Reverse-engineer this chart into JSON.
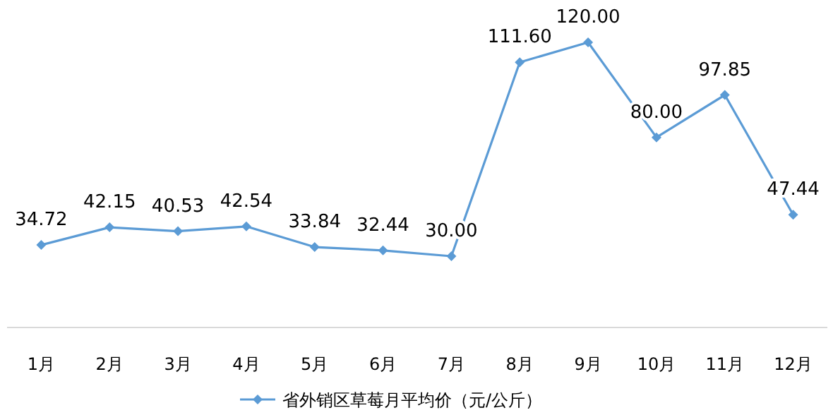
{
  "chart_data": {
    "type": "line",
    "categories": [
      "1月",
      "2月",
      "3月",
      "4月",
      "5月",
      "6月",
      "7月",
      "8月",
      "9月",
      "10月",
      "11月",
      "12月"
    ],
    "series": [
      {
        "name": "省外销区草莓月平均价（元/公斤）",
        "color": "#5b9bd5",
        "values": [
          34.72,
          42.15,
          40.53,
          42.54,
          33.84,
          32.44,
          30.0,
          111.6,
          120.0,
          80.0,
          97.85,
          47.44
        ],
        "value_labels": [
          "34.72",
          "42.15",
          "40.53",
          "42.54",
          "33.84",
          "32.44",
          "30.00",
          "111.60",
          "120.00",
          "80.00",
          "97.85",
          "47.44"
        ]
      }
    ],
    "marker": "diamond",
    "legend": "bottom"
  }
}
